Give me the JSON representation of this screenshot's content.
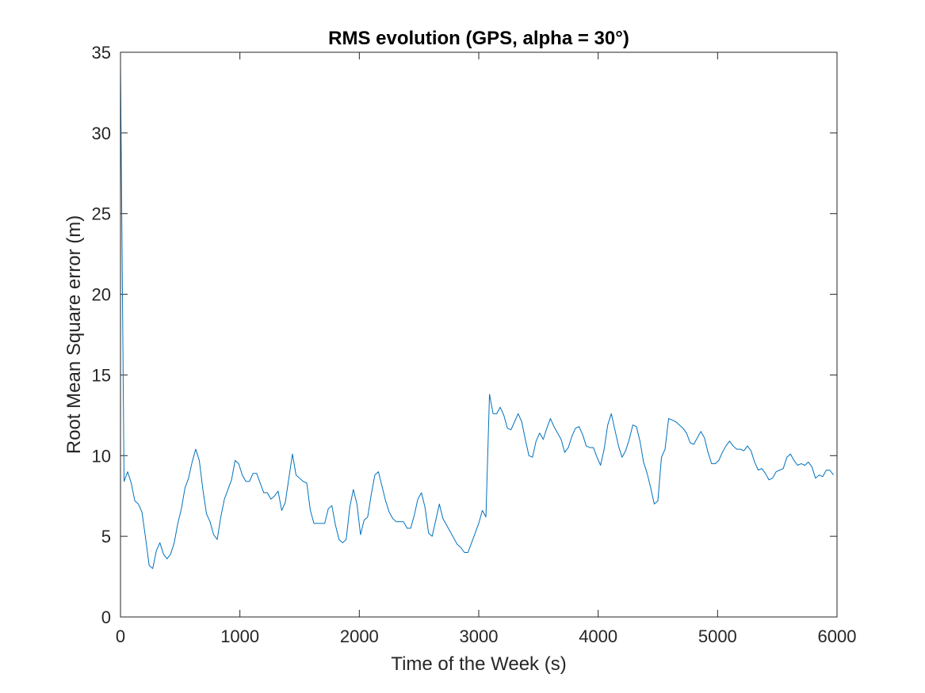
{
  "chart_data": {
    "type": "line",
    "title": "RMS evolution (GPS, alpha = 30°)",
    "xlabel": "Time of the Week (s)",
    "ylabel": "Root Mean Square error (m)",
    "xlim": [
      0,
      6000
    ],
    "ylim": [
      0,
      35
    ],
    "xticks": [
      0,
      1000,
      2000,
      3000,
      4000,
      5000,
      6000
    ],
    "yticks": [
      0,
      5,
      10,
      15,
      20,
      25,
      30,
      35
    ],
    "grid": false,
    "box": true,
    "series": [
      {
        "color": "#0072BD",
        "x": [
          0,
          30,
          60,
          90,
          120,
          150,
          180,
          210,
          240,
          270,
          300,
          330,
          360,
          390,
          420,
          450,
          480,
          510,
          540,
          570,
          600,
          630,
          660,
          690,
          720,
          750,
          780,
          810,
          840,
          870,
          900,
          930,
          960,
          990,
          1020,
          1050,
          1080,
          1110,
          1140,
          1170,
          1200,
          1230,
          1260,
          1290,
          1320,
          1350,
          1380,
          1410,
          1440,
          1470,
          1500,
          1530,
          1560,
          1590,
          1620,
          1650,
          1680,
          1710,
          1740,
          1770,
          1800,
          1830,
          1860,
          1890,
          1920,
          1950,
          1980,
          2010,
          2040,
          2070,
          2100,
          2130,
          2160,
          2190,
          2220,
          2250,
          2280,
          2310,
          2340,
          2370,
          2400,
          2430,
          2460,
          2490,
          2520,
          2550,
          2580,
          2610,
          2640,
          2670,
          2700,
          2730,
          2760,
          2790,
          2820,
          2850,
          2880,
          2910,
          2940,
          2970,
          3000,
          3030,
          3060,
          3090,
          3120,
          3150,
          3180,
          3210,
          3240,
          3270,
          3300,
          3330,
          3360,
          3390,
          3420,
          3450,
          3480,
          3510,
          3540,
          3570,
          3600,
          3630,
          3660,
          3690,
          3720,
          3750,
          3780,
          3810,
          3840,
          3870,
          3900,
          3930,
          3960,
          3990,
          4020,
          4050,
          4080,
          4110,
          4140,
          4170,
          4200,
          4230,
          4260,
          4290,
          4320,
          4350,
          4380,
          4410,
          4440,
          4470,
          4500,
          4530,
          4560,
          4590,
          4620,
          4650,
          4680,
          4710,
          4740,
          4770,
          4800,
          4830,
          4860,
          4890,
          4920,
          4950,
          4980,
          5010,
          5040,
          5070,
          5100,
          5130,
          5160,
          5190,
          5220,
          5250,
          5280,
          5310,
          5340,
          5370,
          5400,
          5430,
          5460,
          5490,
          5520,
          5550,
          5580,
          5610,
          5640,
          5670,
          5700,
          5730,
          5760,
          5790,
          5820,
          5850,
          5880,
          5910,
          5940,
          5970
        ],
        "y": [
          34.2,
          8.4,
          9.0,
          8.3,
          7.2,
          7.0,
          6.5,
          4.9,
          3.2,
          3.0,
          4.1,
          4.6,
          3.9,
          3.6,
          3.9,
          4.6,
          5.8,
          6.7,
          8.0,
          8.6,
          9.6,
          10.4,
          9.7,
          7.9,
          6.4,
          5.9,
          5.1,
          4.8,
          6.2,
          7.3,
          7.9,
          8.5,
          9.7,
          9.5,
          8.8,
          8.4,
          8.4,
          8.9,
          8.9,
          8.3,
          7.7,
          7.7,
          7.3,
          7.5,
          7.8,
          6.6,
          7.1,
          8.6,
          10.1,
          8.8,
          8.6,
          8.4,
          8.3,
          6.6,
          5.8,
          5.8,
          5.8,
          5.8,
          6.7,
          6.9,
          5.7,
          4.8,
          4.6,
          4.8,
          6.8,
          7.9,
          7.0,
          5.1,
          6.0,
          6.2,
          7.6,
          8.8,
          9.0,
          8.1,
          7.2,
          6.5,
          6.1,
          5.9,
          5.9,
          5.9,
          5.5,
          5.5,
          6.3,
          7.3,
          7.7,
          6.8,
          5.2,
          5.0,
          6.0,
          7.0,
          6.1,
          5.7,
          5.3,
          4.9,
          4.5,
          4.3,
          4.0,
          4.0,
          4.6,
          5.2,
          5.8,
          6.6,
          6.2,
          13.8,
          12.6,
          12.6,
          13.0,
          12.5,
          11.7,
          11.6,
          12.1,
          12.6,
          12.1,
          11.0,
          10.0,
          9.9,
          10.9,
          11.4,
          11.0,
          11.7,
          12.3,
          11.8,
          11.4,
          11.0,
          10.2,
          10.5,
          11.2,
          11.7,
          11.8,
          11.3,
          10.6,
          10.5,
          10.5,
          9.9,
          9.4,
          10.4,
          11.9,
          12.6,
          11.6,
          10.6,
          9.9,
          10.3,
          11.0,
          11.9,
          11.8,
          10.9,
          9.6,
          8.9,
          8.0,
          7.0,
          7.2,
          9.9,
          10.4,
          12.3,
          12.2,
          12.1,
          11.9,
          11.7,
          11.4,
          10.8,
          10.7,
          11.1,
          11.5,
          11.1,
          10.2,
          9.5,
          9.5,
          9.7,
          10.2,
          10.6,
          10.9,
          10.6,
          10.4,
          10.4,
          10.3,
          10.6,
          10.3,
          9.6,
          9.1,
          9.2,
          8.9,
          8.5,
          8.6,
          9.0,
          9.1,
          9.2,
          9.9,
          10.1,
          9.7,
          9.4,
          9.5,
          9.4,
          9.6,
          9.3,
          8.6,
          8.8,
          8.7,
          9.1,
          9.1,
          8.8
        ]
      }
    ]
  }
}
